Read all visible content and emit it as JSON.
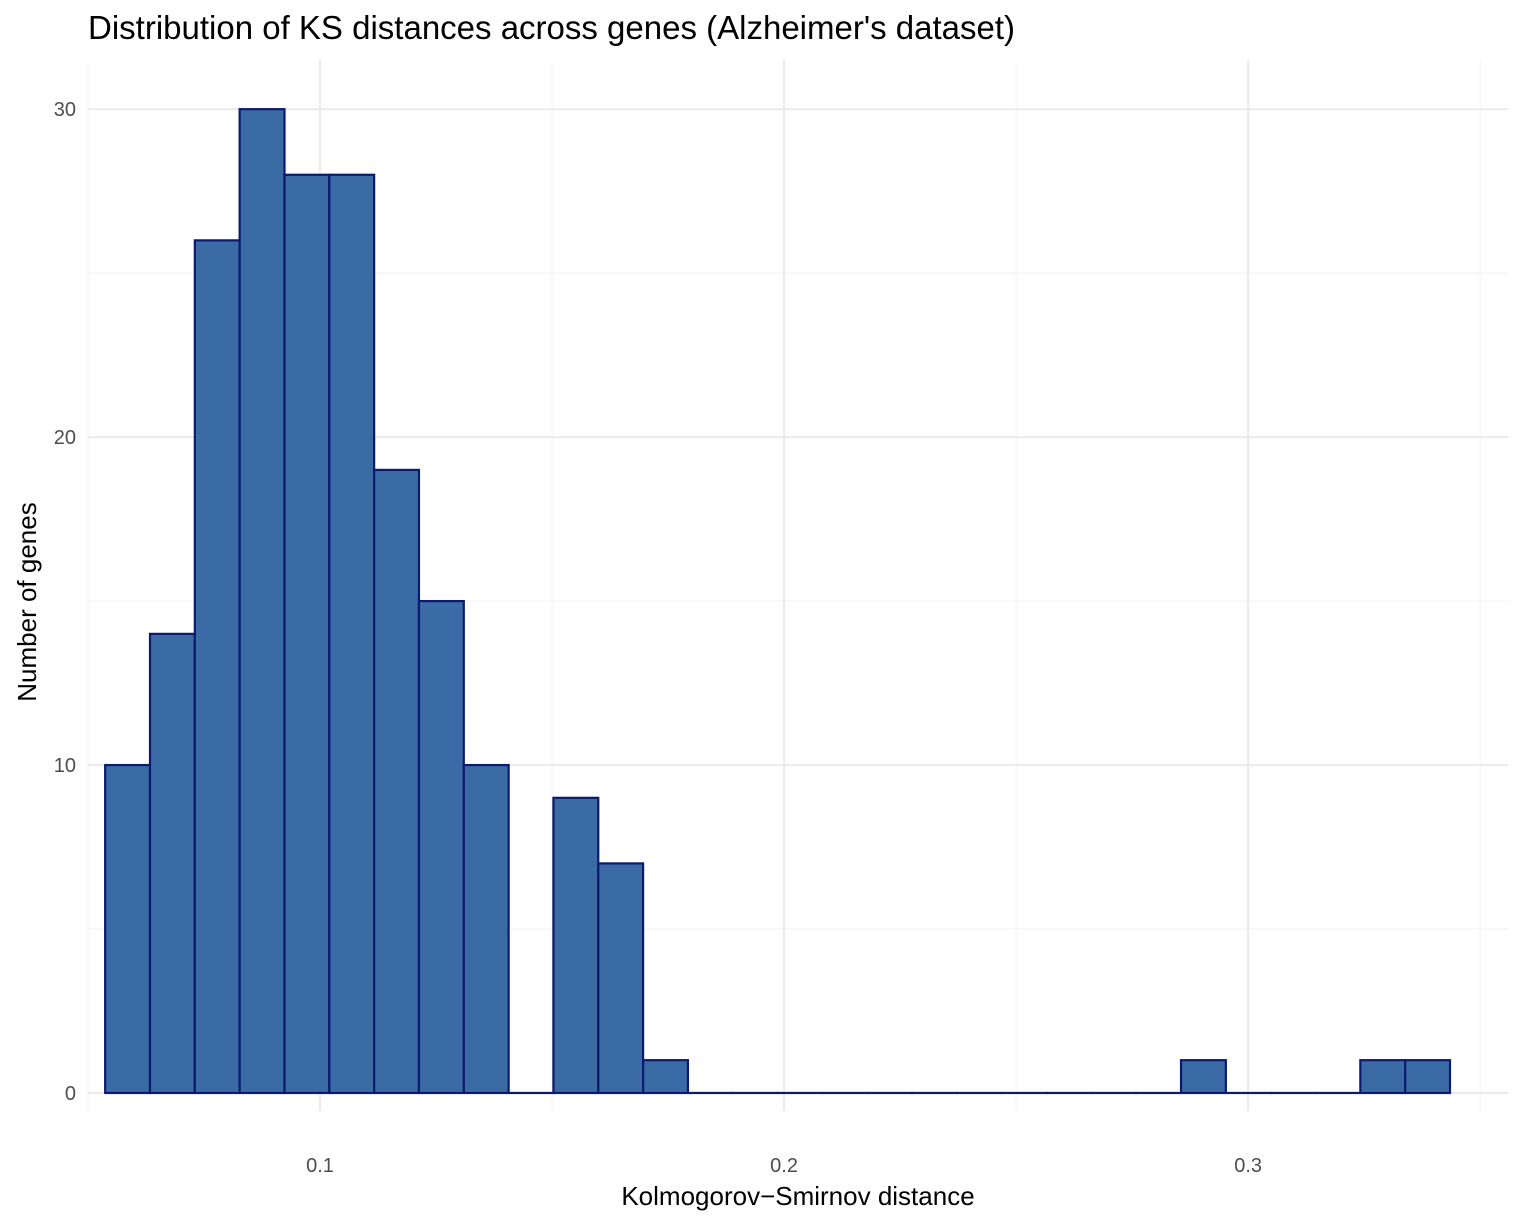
{
  "chart_data": {
    "type": "bar",
    "title": "Distribution of KS distances across genes (Alzheimer's dataset)",
    "xlabel": "Kolmogorov−Smirnov distance",
    "ylabel": "Number of genes",
    "xlim": [
      0.05,
      0.356
    ],
    "ylim": [
      -0.55,
      31.5
    ],
    "x_ticks": [
      0.1,
      0.2,
      0.3
    ],
    "x_tick_labels": [
      "0.1",
      "0.2",
      "0.3"
    ],
    "x_minor_ticks": [
      0.05,
      0.15,
      0.25,
      0.35
    ],
    "y_ticks": [
      0,
      10,
      20,
      30
    ],
    "y_tick_labels": [
      "0",
      "10",
      "20",
      "30"
    ],
    "y_minor_ticks": [
      5,
      15,
      25
    ],
    "grid": true,
    "legend": "none",
    "bin_width": 0.00966,
    "bin_starts": [
      0.0537,
      0.06336,
      0.07302,
      0.08268,
      0.09234,
      0.102,
      0.11166,
      0.12132,
      0.13098,
      0.14064,
      0.1503,
      0.15996,
      0.16962,
      0.17928,
      0.18894,
      0.1986,
      0.20826,
      0.21792,
      0.22758,
      0.23724,
      0.2469,
      0.25656,
      0.26622,
      0.27588,
      0.28554,
      0.2952,
      0.30486,
      0.31452,
      0.32418,
      0.33384
    ],
    "values": [
      10,
      14,
      26,
      30,
      28,
      28,
      19,
      15,
      10,
      0,
      9,
      7,
      1,
      0,
      0,
      0,
      0,
      0,
      0,
      0,
      0,
      0,
      0,
      0,
      1,
      0,
      0,
      0,
      1,
      1
    ],
    "colors": {
      "fill": "#3b6ba5",
      "outline": "#0b1a6e",
      "background": "#ffffff"
    }
  }
}
